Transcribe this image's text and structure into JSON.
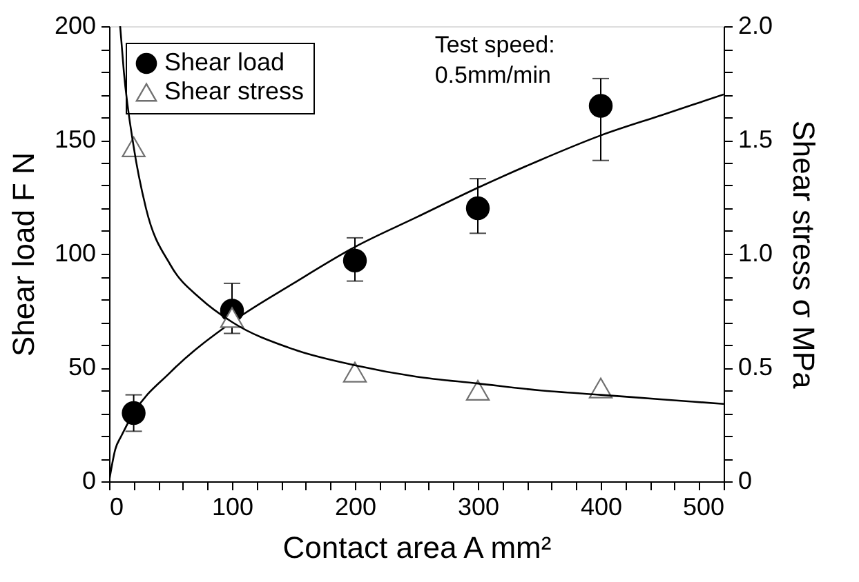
{
  "chart_data": {
    "type": "scatter",
    "xlabel": "Contact  area A  mm²",
    "ylabel": "Shear load  F  N",
    "y2label": "Shear stress  σ  MPa",
    "annotations": [
      "Test speed:\n0.5mm/min"
    ],
    "xlim": [
      0,
      500
    ],
    "ylim": [
      0,
      200
    ],
    "y2lim": [
      0,
      2.0
    ],
    "xticks": [
      0,
      {
        "value": 20,
        "label": null
      },
      {
        "value": 40,
        "label": null
      },
      {
        "value": 60,
        "label": null
      },
      {
        "value": 80,
        "label": null
      },
      100,
      {
        "value": 120,
        "label": null
      },
      {
        "value": 140,
        "label": null
      },
      {
        "value": 160,
        "label": null
      },
      {
        "value": 180,
        "label": null
      },
      200,
      {
        "value": 220,
        "label": null
      },
      {
        "value": 240,
        "label": null
      },
      {
        "value": 260,
        "label": null
      },
      {
        "value": 280,
        "label": null
      },
      300,
      {
        "value": 320,
        "label": null
      },
      {
        "value": 340,
        "label": null
      },
      {
        "value": 360,
        "label": null
      },
      {
        "value": 380,
        "label": null
      },
      400,
      {
        "value": 420,
        "label": null
      },
      {
        "value": 440,
        "label": null
      },
      {
        "value": 460,
        "label": null
      },
      {
        "value": 480,
        "label": null
      },
      500
    ],
    "yticks": [
      0,
      {
        "value": 10,
        "label": null
      },
      {
        "value": 20,
        "label": null
      },
      {
        "value": 30,
        "label": null
      },
      {
        "value": 40,
        "label": null
      },
      50,
      {
        "value": 60,
        "label": null
      },
      {
        "value": 70,
        "label": null
      },
      {
        "value": 80,
        "label": null
      },
      {
        "value": 90,
        "label": null
      },
      100,
      {
        "value": 110,
        "label": null
      },
      {
        "value": 120,
        "label": null
      },
      {
        "value": 130,
        "label": null
      },
      {
        "value": 140,
        "label": null
      },
      150,
      {
        "value": 160,
        "label": null
      },
      {
        "value": 170,
        "label": null
      },
      {
        "value": 180,
        "label": null
      },
      {
        "value": 190,
        "label": null
      },
      200
    ],
    "y2ticks": [
      {
        "value": 0,
        "label": "0"
      },
      {
        "value": 0.1,
        "label": null
      },
      {
        "value": 0.2,
        "label": null
      },
      {
        "value": 0.3,
        "label": null
      },
      {
        "value": 0.4,
        "label": null
      },
      {
        "value": 0.5,
        "label": "0.5"
      },
      {
        "value": 0.6,
        "label": null
      },
      {
        "value": 0.7,
        "label": null
      },
      {
        "value": 0.8,
        "label": null
      },
      {
        "value": 0.9,
        "label": null
      },
      {
        "value": 1.0,
        "label": "1.0"
      },
      {
        "value": 1.1,
        "label": null
      },
      {
        "value": 1.2,
        "label": null
      },
      {
        "value": 1.3,
        "label": null
      },
      {
        "value": 1.4,
        "label": null
      },
      {
        "value": 1.5,
        "label": "1.5"
      },
      {
        "value": 1.6,
        "label": null
      },
      {
        "value": 1.7,
        "label": null
      },
      {
        "value": 1.8,
        "label": null
      },
      {
        "value": 1.9,
        "label": null
      },
      {
        "value": 2.0,
        "label": "2.0"
      }
    ],
    "grid": false,
    "legend": "top left",
    "series": [
      {
        "name": "Shear load",
        "type": "scatter",
        "marker": "circle",
        "color": "#000000",
        "x": [
          20,
          100,
          200,
          300,
          400
        ],
        "values": [
          30,
          75,
          97,
          120,
          165
        ],
        "errors": [
          [
            22,
            38
          ],
          [
            65,
            87
          ],
          [
            88,
            107
          ],
          [
            109,
            133
          ],
          [
            141,
            177
          ]
        ]
      },
      {
        "name": "Shear stress",
        "type": "scatter",
        "marker": "triangle",
        "color": "#707070",
        "axis": "y2",
        "x": [
          20,
          100,
          200,
          300,
          400
        ],
        "values": [
          1.47,
          0.72,
          0.48,
          0.4,
          0.41
        ]
      },
      {
        "type": "line",
        "marker": "none",
        "color": "#000000",
        "x": [
          0,
          5,
          10,
          20,
          50,
          100,
          150,
          200,
          250,
          300,
          350,
          400,
          450,
          500
        ],
        "values": [
          0,
          14,
          20,
          30,
          48,
          70,
          87,
          103,
          116,
          129,
          141,
          152,
          161,
          170
        ]
      },
      {
        "type": "line",
        "marker": "none",
        "color": "#000000",
        "axis": "y2",
        "x": [
          9,
          12,
          20,
          30,
          50,
          75,
          100,
          150,
          200,
          250,
          300,
          350,
          400,
          450,
          500
        ],
        "values": [
          2.0,
          1.8,
          1.47,
          1.2,
          0.95,
          0.8,
          0.7,
          0.58,
          0.51,
          0.46,
          0.43,
          0.4,
          0.38,
          0.36,
          0.34
        ]
      }
    ]
  }
}
